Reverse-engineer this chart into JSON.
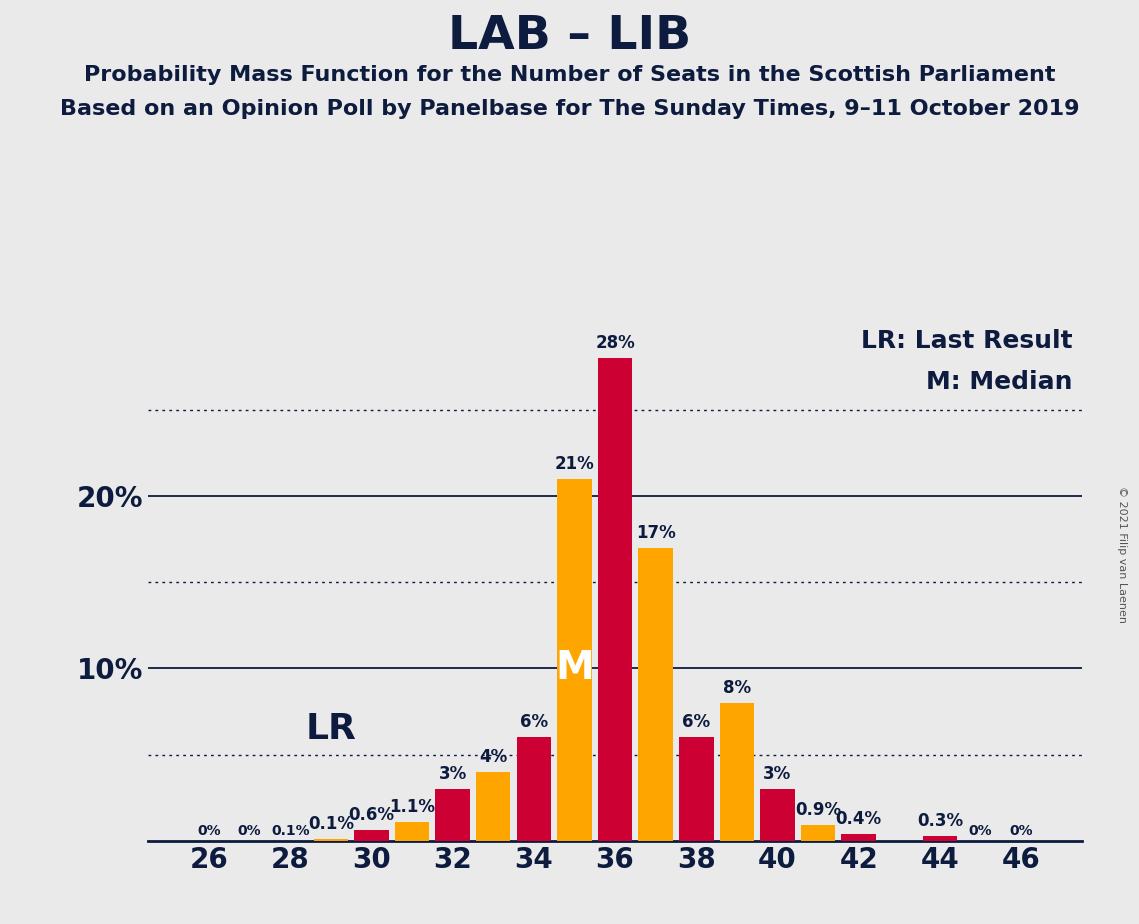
{
  "title": "LAB – LIB",
  "subtitle1": "Probability Mass Function for the Number of Seats in the Scottish Parliament",
  "subtitle2": "Based on an Opinion Poll by Panelbase for The Sunday Times, 9–11 October 2019",
  "copyright": "© 2021 Filip van Laenen",
  "red_color": "#CC0033",
  "orange_color": "#FFA500",
  "background_color": "#EAEAEA",
  "text_color": "#0D1B3E",
  "red_seats": [
    30,
    32,
    34,
    36,
    38,
    40,
    42,
    44
  ],
  "red_pcts": [
    0.6,
    3.0,
    6.0,
    28.0,
    6.0,
    3.0,
    0.4,
    0.3
  ],
  "red_labels": [
    "0.6%",
    "3%",
    "6%",
    "28%",
    "6%",
    "3%",
    "0.4%",
    "0.3%"
  ],
  "orange_seats": [
    29,
    31,
    33,
    35,
    37,
    39,
    41
  ],
  "orange_pcts": [
    0.1,
    1.1,
    4.0,
    21.0,
    17.0,
    8.0,
    0.9
  ],
  "orange_labels": [
    "0.1%",
    "1.1%",
    "4%",
    "21%",
    "17%",
    "8%",
    "0.9%"
  ],
  "zero_seats_labels": [
    [
      26,
      "0%"
    ],
    [
      27,
      "0%"
    ],
    [
      28,
      "0.1%"
    ],
    [
      45,
      "0%"
    ],
    [
      46,
      "0%"
    ]
  ],
  "xlim": [
    24.5,
    47.5
  ],
  "ylim": [
    0,
    30
  ],
  "xticks": [
    26,
    28,
    30,
    32,
    34,
    36,
    38,
    40,
    42,
    44,
    46
  ],
  "ytick_positions": [
    10,
    20
  ],
  "ytick_labels": [
    "10%",
    "20%"
  ],
  "dotted_lines": [
    5,
    15,
    25
  ],
  "solid_lines": [
    10,
    20
  ],
  "bar_width": 0.85,
  "lr_text": "LR",
  "lr_x": 29.0,
  "lr_y": 6.5,
  "median_text": "M",
  "median_x": 35.0,
  "median_y": 10.0,
  "legend_lr": "LR: Last Result",
  "legend_m": "M: Median",
  "title_fontsize": 34,
  "subtitle_fontsize": 16,
  "tick_fontsize": 20,
  "label_fontsize": 12,
  "legend_fontsize": 18,
  "lr_fontsize": 26,
  "median_fontsize": 28
}
